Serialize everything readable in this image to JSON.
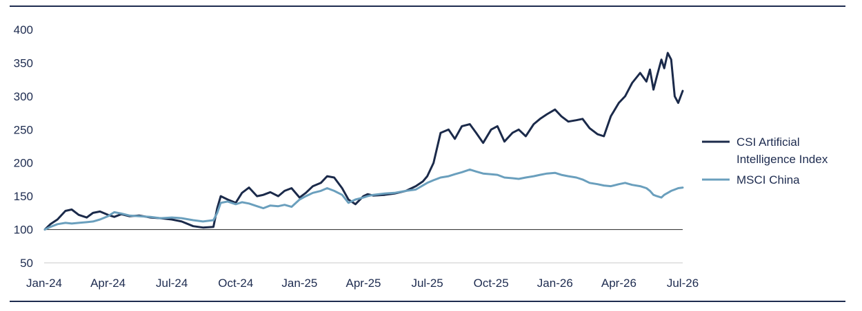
{
  "colors": {
    "frame": "#1d2b4f",
    "ai_index": "#1b2a4a",
    "msci": "#6a9fbd",
    "baseline": "#222222",
    "axis": "#c8c8c8"
  },
  "chart_data": {
    "type": "line",
    "title": "",
    "xlabel": "",
    "ylabel": "",
    "ylim": [
      50,
      400
    ],
    "yticks": [
      50,
      100,
      150,
      200,
      250,
      300,
      350,
      400
    ],
    "reference_line": 100,
    "xlim": [
      "2024-01",
      "2026-07"
    ],
    "xticks": [
      "Jan-24",
      "Apr-24",
      "Jul-24",
      "Oct-24",
      "Jan-25",
      "Apr-25",
      "Jul-25",
      "Oct-25",
      "Jan-26",
      "Apr-26",
      "Jul-26"
    ],
    "xtick_positions": [
      "2024-01",
      "2024-04",
      "2024-07",
      "2024-10",
      "2025-01",
      "2025-04",
      "2025-07",
      "2025-10",
      "2026-01",
      "2026-04",
      "2026-07"
    ],
    "grid": false,
    "legend_position": "right",
    "series": [
      {
        "name": "CSI Artificial Intelligence Index",
        "legend_lines": [
          "CSI Artificial",
          "Intelligence Index"
        ],
        "color": "#1b2a4a",
        "x": [
          "2024-01-02",
          "2024-01-10",
          "2024-01-20",
          "2024-02-01",
          "2024-02-10",
          "2024-02-20",
          "2024-03-01",
          "2024-03-10",
          "2024-03-20",
          "2024-04-01",
          "2024-04-10",
          "2024-04-20",
          "2024-05-01",
          "2024-05-15",
          "2024-06-01",
          "2024-06-15",
          "2024-07-01",
          "2024-07-15",
          "2024-08-01",
          "2024-08-15",
          "2024-08-30",
          "2024-09-05",
          "2024-09-10",
          "2024-09-20",
          "2024-10-01",
          "2024-10-10",
          "2024-10-20",
          "2024-11-01",
          "2024-11-10",
          "2024-11-20",
          "2024-12-01",
          "2024-12-10",
          "2024-12-20",
          "2025-01-01",
          "2025-01-10",
          "2025-01-20",
          "2025-02-01",
          "2025-02-10",
          "2025-02-20",
          "2025-03-01",
          "2025-03-10",
          "2025-03-20",
          "2025-04-01",
          "2025-04-07",
          "2025-04-15",
          "2025-05-01",
          "2025-05-15",
          "2025-06-01",
          "2025-06-15",
          "2025-06-25",
          "2025-07-01",
          "2025-07-10",
          "2025-07-20",
          "2025-08-01",
          "2025-08-10",
          "2025-08-20",
          "2025-09-01",
          "2025-09-10",
          "2025-09-20",
          "2025-10-01",
          "2025-10-10",
          "2025-10-20",
          "2025-11-01",
          "2025-11-10",
          "2025-11-20",
          "2025-12-01",
          "2025-12-10",
          "2025-12-20",
          "2026-01-01",
          "2026-01-10",
          "2026-01-20",
          "2026-02-01",
          "2026-02-10",
          "2026-02-20",
          "2026-03-01",
          "2026-03-10",
          "2026-03-20",
          "2026-04-01",
          "2026-04-10",
          "2026-04-20",
          "2026-05-01",
          "2026-05-10",
          "2026-05-15",
          "2026-05-20",
          "2026-05-25",
          "2026-06-01",
          "2026-06-05",
          "2026-06-10",
          "2026-06-15",
          "2026-06-20",
          "2026-06-25",
          "2026-07-01"
        ],
        "values": [
          100,
          108,
          115,
          128,
          130,
          122,
          118,
          125,
          127,
          122,
          119,
          123,
          120,
          121,
          118,
          117,
          115,
          112,
          105,
          103,
          104,
          132,
          150,
          145,
          140,
          155,
          163,
          150,
          152,
          156,
          150,
          158,
          162,
          148,
          155,
          165,
          170,
          180,
          178,
          162,
          145,
          138,
          150,
          153,
          151,
          152,
          154,
          158,
          165,
          172,
          180,
          200,
          245,
          250,
          236,
          255,
          258,
          245,
          230,
          250,
          255,
          232,
          245,
          250,
          240,
          258,
          266,
          273,
          280,
          270,
          262,
          264,
          266,
          252,
          243,
          240,
          270,
          290,
          300,
          320,
          335,
          322,
          340,
          310,
          330,
          355,
          342,
          365,
          355,
          300,
          290,
          308
        ]
      },
      {
        "name": "MSCI China",
        "legend_lines": [
          "MSCI China"
        ],
        "color": "#6a9fbd",
        "x": [
          "2024-01-02",
          "2024-01-10",
          "2024-01-20",
          "2024-02-01",
          "2024-02-10",
          "2024-02-20",
          "2024-03-01",
          "2024-03-10",
          "2024-03-20",
          "2024-04-01",
          "2024-04-10",
          "2024-04-20",
          "2024-05-01",
          "2024-05-15",
          "2024-06-01",
          "2024-06-15",
          "2024-07-01",
          "2024-07-15",
          "2024-08-01",
          "2024-08-15",
          "2024-08-30",
          "2024-09-05",
          "2024-09-10",
          "2024-09-20",
          "2024-10-01",
          "2024-10-10",
          "2024-10-20",
          "2024-11-01",
          "2024-11-10",
          "2024-11-20",
          "2024-12-01",
          "2024-12-10",
          "2024-12-20",
          "2025-01-01",
          "2025-01-10",
          "2025-01-20",
          "2025-02-01",
          "2025-02-10",
          "2025-02-20",
          "2025-03-01",
          "2025-03-10",
          "2025-03-20",
          "2025-04-01",
          "2025-04-07",
          "2025-04-15",
          "2025-05-01",
          "2025-05-15",
          "2025-06-01",
          "2025-06-15",
          "2025-06-25",
          "2025-07-01",
          "2025-07-10",
          "2025-07-20",
          "2025-08-01",
          "2025-08-10",
          "2025-08-20",
          "2025-09-01",
          "2025-09-10",
          "2025-09-20",
          "2025-10-01",
          "2025-10-10",
          "2025-10-20",
          "2025-11-01",
          "2025-11-10",
          "2025-11-20",
          "2025-12-01",
          "2025-12-10",
          "2025-12-20",
          "2026-01-01",
          "2026-01-10",
          "2026-01-20",
          "2026-02-01",
          "2026-02-10",
          "2026-02-20",
          "2026-03-01",
          "2026-03-10",
          "2026-03-20",
          "2026-04-01",
          "2026-04-10",
          "2026-04-20",
          "2026-05-01",
          "2026-05-10",
          "2026-05-15",
          "2026-05-20",
          "2026-05-25",
          "2026-06-01",
          "2026-06-05",
          "2026-06-10",
          "2026-06-15",
          "2026-06-20",
          "2026-06-25",
          "2026-07-01"
        ],
        "values": [
          100,
          104,
          108,
          110,
          109,
          110,
          111,
          112,
          115,
          120,
          126,
          124,
          121,
          120,
          119,
          117,
          118,
          117,
          114,
          112,
          114,
          125,
          140,
          142,
          138,
          141,
          139,
          135,
          132,
          136,
          135,
          137,
          134,
          145,
          150,
          155,
          158,
          162,
          158,
          152,
          140,
          145,
          148,
          150,
          152,
          154,
          155,
          158,
          160,
          166,
          170,
          174,
          178,
          180,
          183,
          186,
          190,
          187,
          184,
          183,
          182,
          178,
          177,
          176,
          178,
          180,
          182,
          184,
          185,
          182,
          180,
          178,
          175,
          170,
          168,
          166,
          165,
          168,
          170,
          167,
          165,
          162,
          158,
          152,
          150,
          148,
          152,
          155,
          158,
          160,
          162,
          163
        ]
      }
    ]
  }
}
